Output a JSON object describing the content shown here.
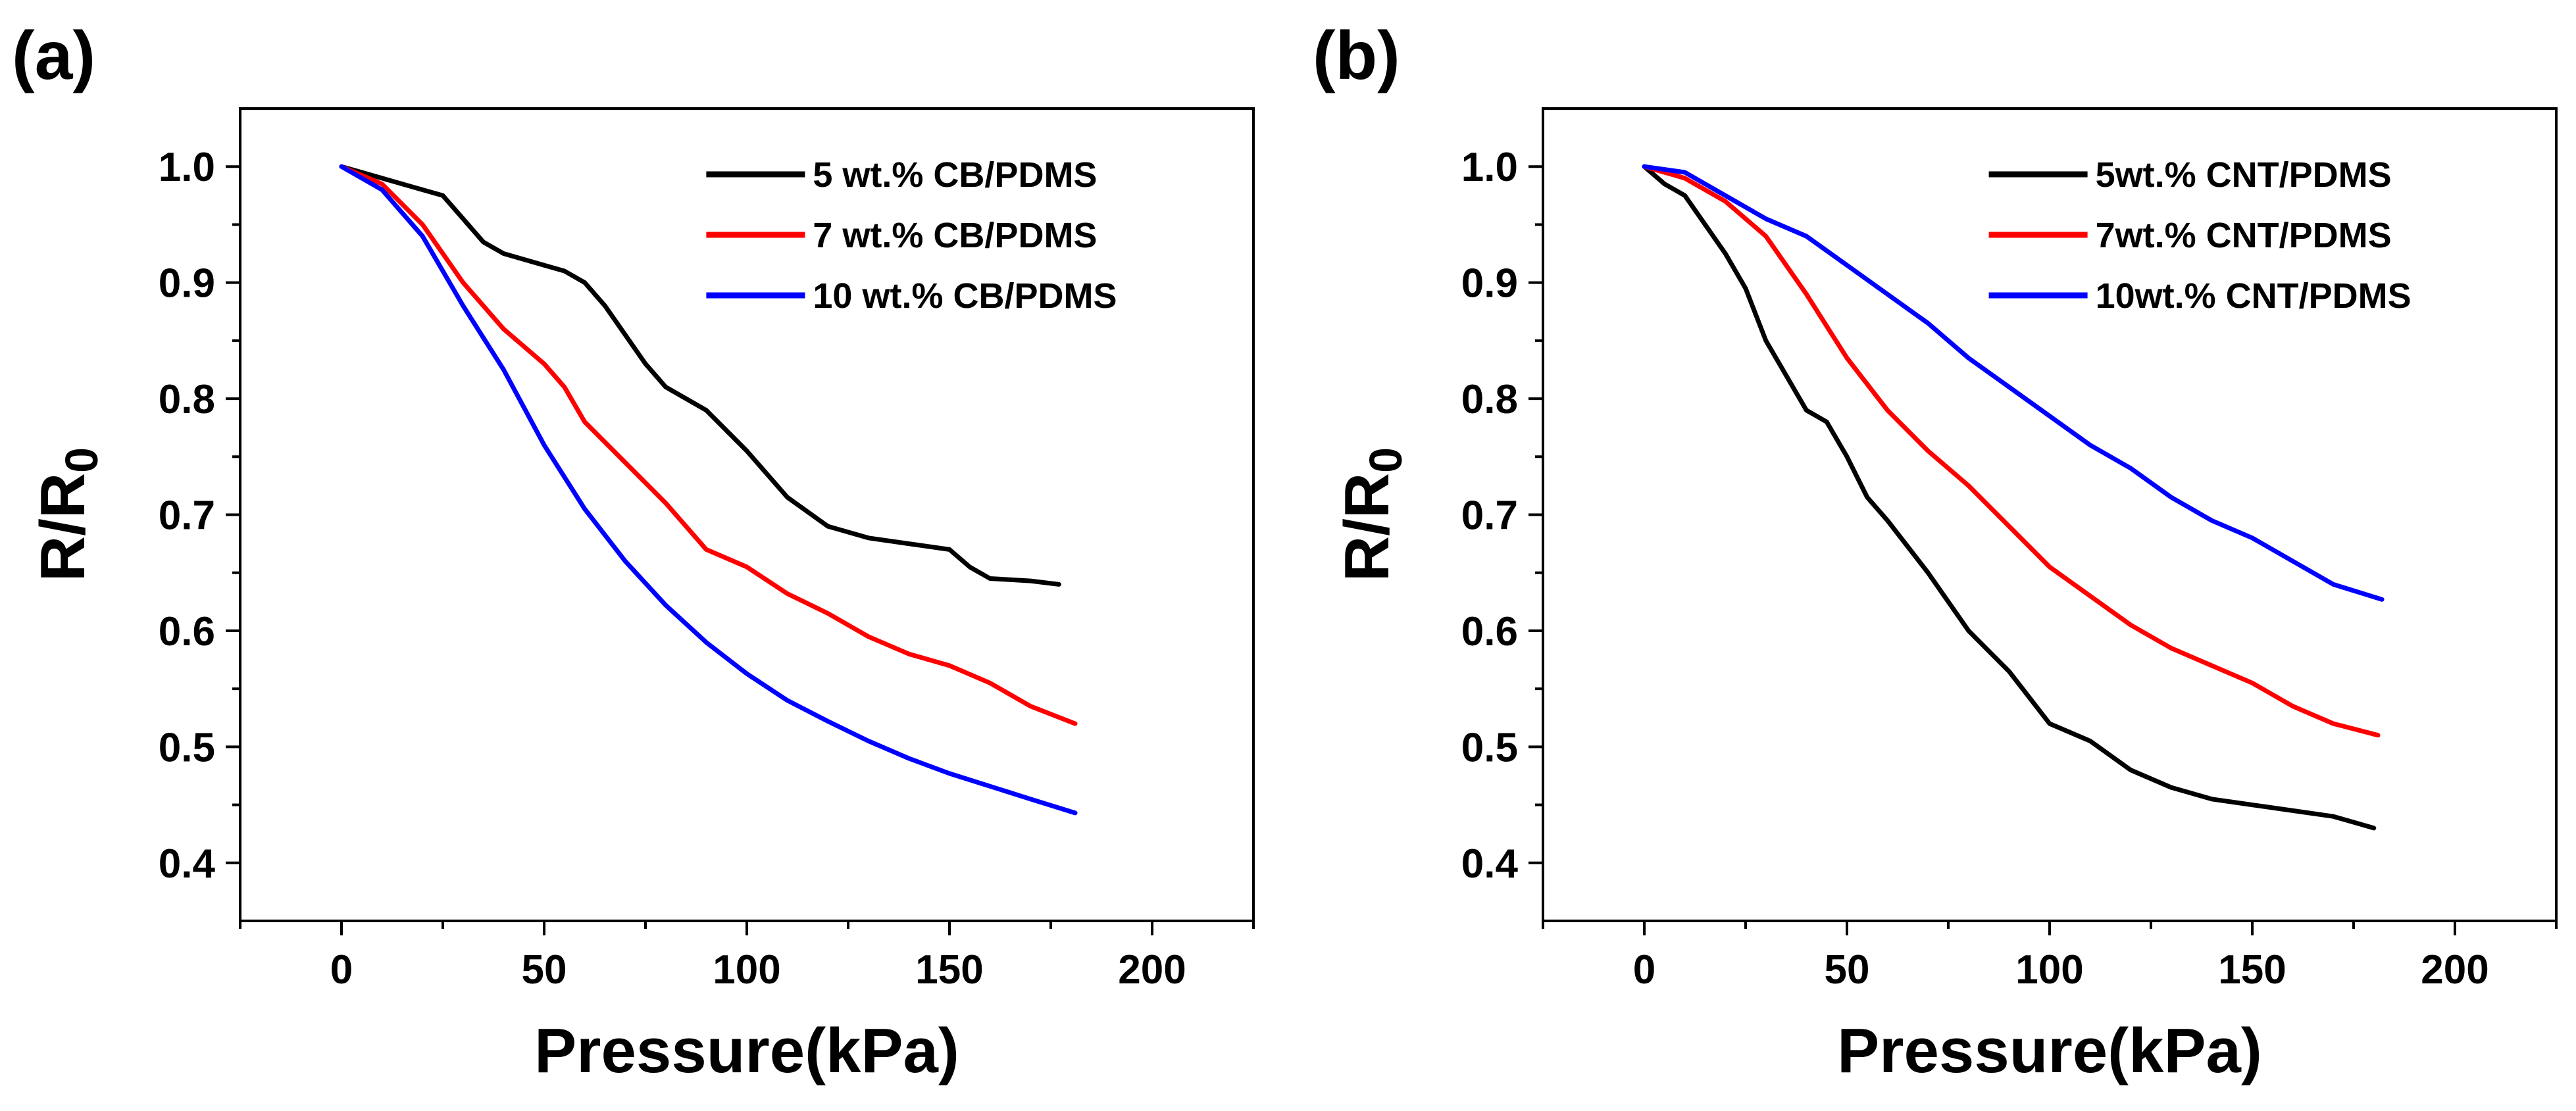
{
  "chart_data": [
    {
      "type": "line",
      "panel_label": "(a)",
      "xlabel": "Pressure(kPa)",
      "ylabel_main": "R/R",
      "ylabel_sub": "0",
      "xlim": [
        -25,
        225
      ],
      "ylim": [
        0.35,
        1.05
      ],
      "xticks": [
        0,
        50,
        100,
        150,
        200
      ],
      "xtick_labels": [
        "0",
        "50",
        "100",
        "150",
        "200"
      ],
      "yticks": [
        0.4,
        0.5,
        0.6,
        0.7,
        0.8,
        0.9,
        1.0
      ],
      "ytick_labels": [
        "0.4",
        "0.5",
        "0.6",
        "0.7",
        "0.8",
        "0.9",
        "1.0"
      ],
      "legend_position": "top-right",
      "series": [
        {
          "name": "5 wt.% CB/PDMS",
          "color": "#000000",
          "x": [
            0,
            10,
            20,
            25,
            30,
            35,
            40,
            50,
            55,
            60,
            65,
            70,
            75,
            80,
            90,
            100,
            110,
            120,
            130,
            140,
            150,
            155,
            160,
            170,
            177
          ],
          "y": [
            1.0,
            0.99,
            0.98,
            0.975,
            0.955,
            0.935,
            0.925,
            0.915,
            0.91,
            0.9,
            0.88,
            0.855,
            0.83,
            0.81,
            0.79,
            0.755,
            0.715,
            0.69,
            0.68,
            0.675,
            0.67,
            0.655,
            0.645,
            0.643,
            0.64
          ]
        },
        {
          "name": "7 wt.% CB/PDMS",
          "color": "#ff0000",
          "x": [
            0,
            10,
            20,
            30,
            40,
            50,
            55,
            60,
            70,
            80,
            90,
            100,
            110,
            120,
            130,
            140,
            150,
            160,
            170,
            181
          ],
          "y": [
            1.0,
            0.985,
            0.95,
            0.9,
            0.86,
            0.83,
            0.81,
            0.78,
            0.745,
            0.71,
            0.67,
            0.655,
            0.632,
            0.615,
            0.595,
            0.58,
            0.57,
            0.555,
            0.535,
            0.52
          ]
        },
        {
          "name": "10 wt.% CB/PDMS",
          "color": "#0000ff",
          "x": [
            0,
            10,
            20,
            30,
            40,
            50,
            60,
            70,
            80,
            90,
            100,
            110,
            120,
            130,
            140,
            150,
            160,
            170,
            181
          ],
          "y": [
            1.0,
            0.98,
            0.94,
            0.88,
            0.825,
            0.76,
            0.705,
            0.66,
            0.622,
            0.59,
            0.563,
            0.54,
            0.522,
            0.505,
            0.49,
            0.477,
            0.466,
            0.455,
            0.443
          ]
        }
      ]
    },
    {
      "type": "line",
      "panel_label": "(b)",
      "xlabel": "Pressure(kPa)",
      "ylabel_main": "R/R",
      "ylabel_sub": "0",
      "xlim": [
        -25,
        225
      ],
      "ylim": [
        0.35,
        1.05
      ],
      "xticks": [
        0,
        50,
        100,
        150,
        200
      ],
      "xtick_labels": [
        "0",
        "50",
        "100",
        "150",
        "200"
      ],
      "yticks": [
        0.4,
        0.5,
        0.6,
        0.7,
        0.8,
        0.9,
        1.0
      ],
      "ytick_labels": [
        "0.4",
        "0.5",
        "0.6",
        "0.7",
        "0.8",
        "0.9",
        "1.0"
      ],
      "legend_position": "top-right",
      "series": [
        {
          "name": "5wt.% CNT/PDMS",
          "color": "#000000",
          "x": [
            0,
            5,
            10,
            15,
            20,
            25,
            30,
            35,
            40,
            45,
            50,
            55,
            60,
            70,
            80,
            90,
            100,
            110,
            120,
            130,
            140,
            150,
            160,
            170,
            180
          ],
          "y": [
            1.0,
            0.985,
            0.975,
            0.95,
            0.925,
            0.895,
            0.85,
            0.82,
            0.79,
            0.78,
            0.75,
            0.715,
            0.695,
            0.65,
            0.6,
            0.565,
            0.52,
            0.505,
            0.48,
            0.465,
            0.455,
            0.45,
            0.445,
            0.44,
            0.43
          ]
        },
        {
          "name": "7wt.% CNT/PDMS",
          "color": "#ff0000",
          "x": [
            0,
            10,
            20,
            30,
            40,
            50,
            60,
            70,
            80,
            90,
            100,
            110,
            120,
            130,
            140,
            150,
            160,
            170,
            181
          ],
          "y": [
            1.0,
            0.99,
            0.97,
            0.94,
            0.89,
            0.835,
            0.79,
            0.755,
            0.725,
            0.69,
            0.655,
            0.63,
            0.605,
            0.585,
            0.57,
            0.555,
            0.535,
            0.52,
            0.51
          ]
        },
        {
          "name": "10wt.% CNT/PDMS",
          "color": "#0000ff",
          "x": [
            0,
            10,
            20,
            30,
            40,
            50,
            60,
            70,
            80,
            90,
            100,
            110,
            120,
            130,
            140,
            150,
            160,
            170,
            182
          ],
          "y": [
            1.0,
            0.995,
            0.975,
            0.955,
            0.94,
            0.915,
            0.89,
            0.865,
            0.835,
            0.81,
            0.785,
            0.76,
            0.74,
            0.715,
            0.695,
            0.68,
            0.66,
            0.64,
            0.627
          ]
        }
      ]
    }
  ]
}
